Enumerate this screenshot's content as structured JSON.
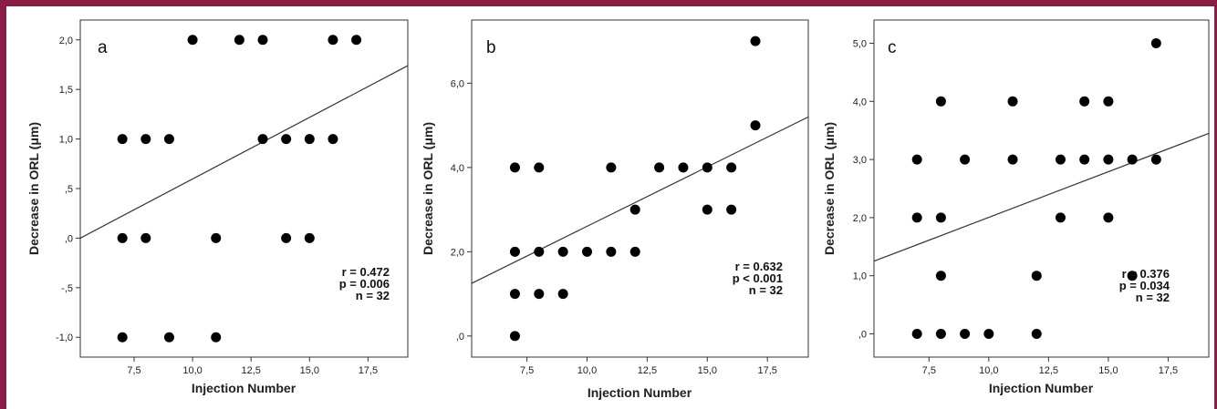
{
  "chart_data": [
    {
      "type": "scatter",
      "panel_label": "a",
      "xlabel": "Injection Number",
      "ylabel": "Decrease in ORL (μm)",
      "xlim": [
        5.2,
        19.2
      ],
      "ylim": [
        -1.2,
        2.2
      ],
      "xticks": [
        7.5,
        10.0,
        12.5,
        15.0,
        17.5
      ],
      "xtick_labels": [
        "7,5",
        "10,0",
        "12,5",
        "15,0",
        "17,5"
      ],
      "yticks": [
        -1.0,
        -0.5,
        0.0,
        0.5,
        1.0,
        1.5,
        2.0
      ],
      "ytick_labels": [
        "-1,0",
        "-,5",
        ",0",
        ",5",
        "1,0",
        "1,5",
        "2,0"
      ],
      "points": [
        [
          7,
          1
        ],
        [
          7,
          0
        ],
        [
          7,
          -1
        ],
        [
          8,
          1
        ],
        [
          8,
          0
        ],
        [
          9,
          1
        ],
        [
          9,
          -1
        ],
        [
          10,
          2
        ],
        [
          11,
          0
        ],
        [
          11,
          -1
        ],
        [
          12,
          2
        ],
        [
          13,
          2
        ],
        [
          13,
          1
        ],
        [
          14,
          1
        ],
        [
          14,
          0
        ],
        [
          15,
          1
        ],
        [
          15,
          0
        ],
        [
          16,
          2
        ],
        [
          16,
          1
        ],
        [
          17,
          2
        ]
      ],
      "fit_line": [
        [
          5.2,
          0.0
        ],
        [
          19.2,
          1.74
        ]
      ],
      "stats": [
        "r = 0.472",
        "p = 0.006",
        "n = 32"
      ],
      "grid": false
    },
    {
      "type": "scatter",
      "panel_label": "b",
      "xlabel": "Injection Number",
      "ylabel": "Decrease in ORL (μm)",
      "xlim": [
        5.2,
        19.2
      ],
      "ylim": [
        -0.5,
        7.5
      ],
      "xticks": [
        7.5,
        10.0,
        12.5,
        15.0,
        17.5
      ],
      "xtick_labels": [
        "7,5",
        "10,0",
        "12,5",
        "15,0",
        "17,5"
      ],
      "yticks": [
        0,
        2,
        4,
        6
      ],
      "ytick_labels": [
        ",0",
        "2,0",
        "4,0",
        "6,0"
      ],
      "points": [
        [
          7,
          4
        ],
        [
          7,
          2
        ],
        [
          7,
          1
        ],
        [
          7,
          0
        ],
        [
          8,
          4
        ],
        [
          8,
          2
        ],
        [
          8,
          1
        ],
        [
          9,
          2
        ],
        [
          9,
          1
        ],
        [
          10,
          2
        ],
        [
          11,
          4
        ],
        [
          11,
          2
        ],
        [
          12,
          3
        ],
        [
          12,
          2
        ],
        [
          13,
          4
        ],
        [
          14,
          4
        ],
        [
          15,
          4
        ],
        [
          15,
          3
        ],
        [
          16,
          4
        ],
        [
          16,
          3
        ],
        [
          17,
          7
        ],
        [
          17,
          5
        ]
      ],
      "fit_line": [
        [
          5.2,
          1.25
        ],
        [
          19.2,
          5.2
        ]
      ],
      "stats": [
        "r = 0.632",
        "p < 0.001",
        "n = 32"
      ],
      "grid": false
    },
    {
      "type": "scatter",
      "panel_label": "c",
      "xlabel": "Injection Number",
      "ylabel": "Decrease in ORL (μm)",
      "xlim": [
        5.2,
        19.2
      ],
      "ylim": [
        -0.4,
        5.4
      ],
      "xticks": [
        7.5,
        10.0,
        12.5,
        15.0,
        17.5
      ],
      "xtick_labels": [
        "7,5",
        "10,0",
        "12,5",
        "15,0",
        "17,5"
      ],
      "yticks": [
        0,
        1,
        2,
        3,
        4,
        5
      ],
      "ytick_labels": [
        ",0",
        "1,0",
        "2,0",
        "3,0",
        "4,0",
        "5,0"
      ],
      "points": [
        [
          7,
          3
        ],
        [
          7,
          2
        ],
        [
          7,
          0
        ],
        [
          8,
          4
        ],
        [
          8,
          2
        ],
        [
          8,
          1
        ],
        [
          8,
          0
        ],
        [
          9,
          3
        ],
        [
          9,
          0
        ],
        [
          10,
          0
        ],
        [
          11,
          4
        ],
        [
          11,
          3
        ],
        [
          12,
          1
        ],
        [
          12,
          0
        ],
        [
          13,
          3
        ],
        [
          13,
          2
        ],
        [
          14,
          4
        ],
        [
          14,
          3
        ],
        [
          15,
          4
        ],
        [
          15,
          3
        ],
        [
          15,
          2
        ],
        [
          16,
          3
        ],
        [
          16,
          1
        ],
        [
          17,
          5
        ],
        [
          17,
          3
        ]
      ],
      "fit_line": [
        [
          5.2,
          1.25
        ],
        [
          19.2,
          3.45
        ]
      ],
      "stats": [
        "r = 0.376",
        "p = 0.034",
        "n = 32"
      ],
      "grid": false
    }
  ]
}
